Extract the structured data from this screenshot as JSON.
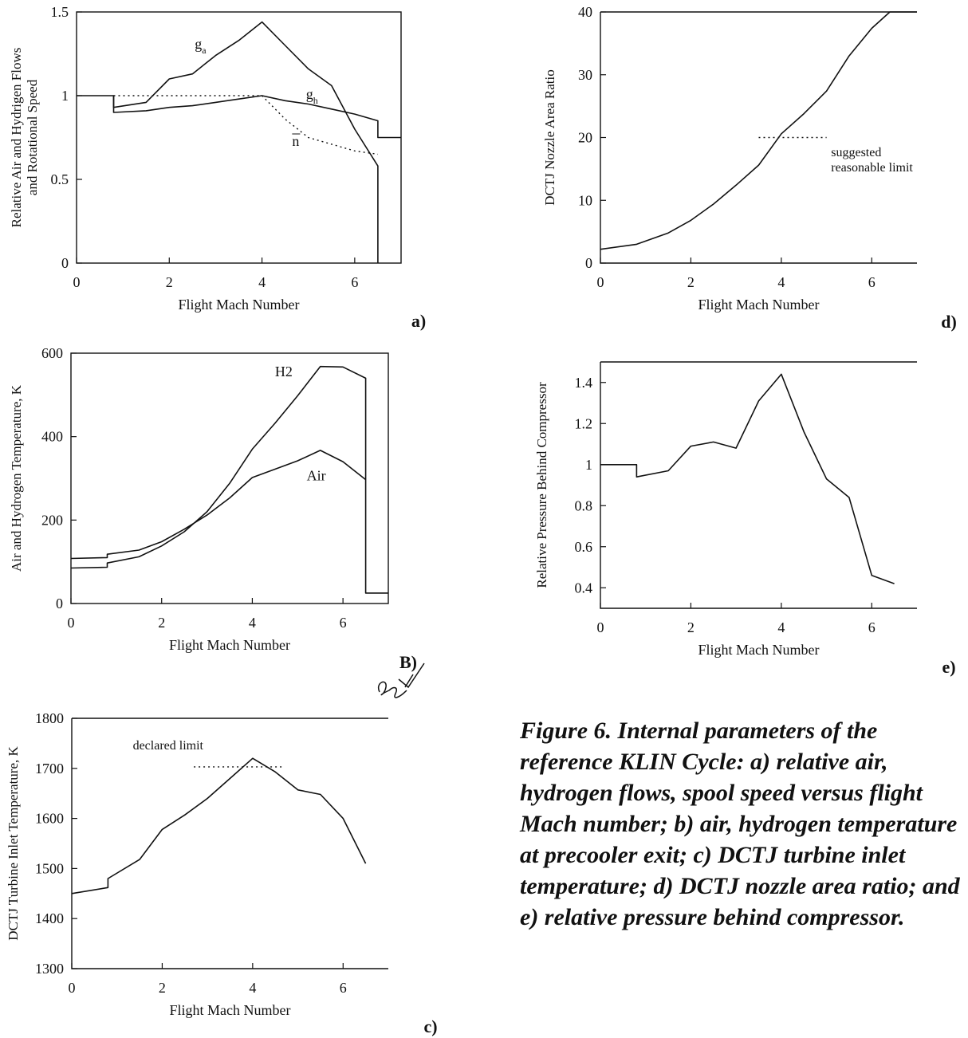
{
  "caption": "Figure 6.  Internal parameters of the reference KLIN Cycle: a) relative air, hydrogen flows, spool speed versus flight Mach number; b) air, hydrogen temperature at precooler exit; c) DCTJ turbine inlet temperature; d) DCTJ nozzle area ratio; and e) relative pressure behind compressor.",
  "chart_data": [
    {
      "id": "a",
      "panel_label": "a)",
      "type": "line",
      "xlabel": "Flight Mach Number",
      "ylabel": [
        "Relative Air and Hydrigen Flows",
        "and Rotational Speed"
      ],
      "xlim": [
        0,
        7
      ],
      "ylim": [
        0,
        1.5
      ],
      "xticks": [
        0,
        2,
        4,
        6
      ],
      "xtick_labels": [
        "0",
        "2",
        "4",
        "6"
      ],
      "yticks": [
        0,
        0.5,
        1,
        1.5
      ],
      "ytick_labels": [
        "0",
        "0.5",
        "1",
        "1.5"
      ],
      "series": [
        {
          "name": "g_a",
          "style": "solid",
          "x": [
            0,
            0.8,
            0.8,
            1.5,
            2,
            2.5,
            3,
            3.5,
            4,
            4.5,
            5,
            5.5,
            6,
            6.5,
            6.5
          ],
          "y": [
            1.0,
            1.0,
            0.93,
            0.96,
            1.1,
            1.13,
            1.24,
            1.33,
            1.44,
            1.3,
            1.16,
            1.06,
            0.8,
            0.58,
            0.0
          ]
        },
        {
          "name": "g_h",
          "style": "solid",
          "x": [
            0.8,
            0.8,
            1.5,
            2,
            2.5,
            3,
            3.5,
            4,
            4.5,
            5,
            5.5,
            6,
            6.5,
            6.5,
            7
          ],
          "y": [
            1.0,
            0.9,
            0.91,
            0.93,
            0.94,
            0.96,
            0.98,
            1.0,
            0.97,
            0.95,
            0.92,
            0.89,
            0.85,
            0.75,
            0.75
          ]
        },
        {
          "name": "n",
          "style": "dotted",
          "x": [
            0.8,
            2,
            3,
            4,
            4.5,
            5,
            5.5,
            6,
            6.5
          ],
          "y": [
            1.0,
            1.0,
            1.0,
            1.0,
            0.86,
            0.75,
            0.71,
            0.67,
            0.65
          ]
        }
      ],
      "annotations": [
        {
          "main": "g",
          "sub": "a",
          "x": 2.55,
          "y": 1.28
        },
        {
          "main": "g",
          "sub": "h",
          "x": 4.95,
          "y": 0.98
        },
        {
          "main": "n",
          "sub": "",
          "x": 4.65,
          "y": 0.7,
          "overline": true
        }
      ]
    },
    {
      "id": "b",
      "panel_label": "B)",
      "type": "line",
      "xlabel": "Flight Mach Number",
      "ylabel": [
        "Air and Hydrogen Temperature, K"
      ],
      "xlim": [
        0,
        7
      ],
      "ylim": [
        0,
        600
      ],
      "xticks": [
        0,
        2,
        4,
        6
      ],
      "xtick_labels": [
        "0",
        "2",
        "4",
        "6"
      ],
      "yticks": [
        0,
        200,
        400,
        600
      ],
      "ytick_labels": [
        "0",
        "200",
        "400",
        "600"
      ],
      "series": [
        {
          "name": "H2",
          "style": "solid",
          "x": [
            0,
            0.8,
            0.8,
            1.5,
            2,
            2.5,
            3,
            3.5,
            4,
            4.5,
            5,
            5.5,
            6,
            6.5,
            6.5,
            7
          ],
          "y": [
            85,
            87,
            97,
            112,
            138,
            172,
            220,
            288,
            370,
            432,
            498,
            568,
            567,
            540,
            25,
            25
          ]
        },
        {
          "name": "Air",
          "style": "solid",
          "x": [
            0,
            0.8,
            0.8,
            1.5,
            2,
            2.5,
            3,
            3.5,
            4,
            4.5,
            5,
            5.5,
            6,
            6.5
          ],
          "y": [
            108,
            110,
            118,
            128,
            148,
            178,
            212,
            253,
            302,
            322,
            342,
            367,
            340,
            297
          ]
        }
      ],
      "annotations": [
        {
          "main": "H2",
          "x": 4.5,
          "y": 545
        },
        {
          "main": "Air",
          "x": 5.2,
          "y": 295
        }
      ]
    },
    {
      "id": "c",
      "panel_label": "c)",
      "type": "line",
      "xlabel": "Flight Mach Number",
      "ylabel": [
        "DCTJ Turbine Inlet Temperature, K"
      ],
      "xlim": [
        0,
        7
      ],
      "ylim": [
        1300,
        1800
      ],
      "xticks": [
        0,
        2,
        4,
        6
      ],
      "xtick_labels": [
        "0",
        "2",
        "4",
        "6"
      ],
      "yticks": [
        1300,
        1400,
        1500,
        1600,
        1700,
        1800
      ],
      "ytick_labels": [
        "1300",
        "1400",
        "1500",
        "1600",
        "1700",
        "1800"
      ],
      "series": [
        {
          "name": "",
          "style": "solid",
          "x": [
            0,
            0.8,
            0.8,
            1.5,
            2,
            2.5,
            3,
            3.5,
            4,
            4.5,
            5,
            5.5,
            6,
            6.5
          ],
          "y": [
            1450,
            1462,
            1480,
            1518,
            1578,
            1607,
            1640,
            1680,
            1720,
            1693,
            1657,
            1648,
            1600,
            1510
          ]
        },
        {
          "name": "declared limit",
          "style": "dotted",
          "x": [
            2.7,
            4.7
          ],
          "y": [
            1703,
            1703
          ]
        }
      ],
      "annotations": [
        {
          "main": "declared limit",
          "x": 1.35,
          "y": 1738
        }
      ]
    },
    {
      "id": "d",
      "panel_label": "d)",
      "type": "line",
      "xlabel": "Flight Mach Number",
      "ylabel": [
        "DCTJ Nozzle Area Ratio"
      ],
      "xlim": [
        0,
        7
      ],
      "ylim": [
        0,
        40
      ],
      "xticks": [
        0,
        2,
        4,
        6
      ],
      "xtick_labels": [
        "0",
        "2",
        "4",
        "6"
      ],
      "yticks": [
        0,
        10,
        20,
        30,
        40
      ],
      "ytick_labels": [
        "0",
        "10",
        "20",
        "30",
        "40"
      ],
      "series": [
        {
          "name": "",
          "style": "solid",
          "x": [
            0,
            0.8,
            1.5,
            2,
            2.5,
            3,
            3.5,
            4,
            4.5,
            5,
            5.5,
            6,
            6.4,
            7
          ],
          "y": [
            2.2,
            3.0,
            4.8,
            6.8,
            9.4,
            12.4,
            15.6,
            20.6,
            23.8,
            27.4,
            33.0,
            37.4,
            40.0,
            40.0
          ]
        },
        {
          "name": "suggested reasonable limit",
          "style": "dotted",
          "x": [
            3.5,
            5.0
          ],
          "y": [
            20.0,
            20.0
          ]
        }
      ],
      "annotations": [
        {
          "main": "suggested",
          "x": 5.1,
          "y": 17.0
        },
        {
          "main": "reasonable limit",
          "x": 5.1,
          "y": 14.6
        }
      ]
    },
    {
      "id": "e",
      "panel_label": "e)",
      "type": "line",
      "xlabel": "Flight Mach Number",
      "ylabel": [
        "Relative Pressure Behind Compressor"
      ],
      "xlim": [
        0,
        7
      ],
      "ylim": [
        0.3,
        1.5
      ],
      "xticks": [
        0,
        2,
        4,
        6
      ],
      "xtick_labels": [
        "0",
        "2",
        "4",
        "6"
      ],
      "yticks": [
        0.4,
        0.6,
        0.8,
        1.0,
        1.2,
        1.4
      ],
      "ytick_labels": [
        "0.4",
        "0.6",
        "0.8",
        "1",
        "1.2",
        "1.4"
      ],
      "series": [
        {
          "name": "",
          "style": "solid",
          "x": [
            0,
            0.8,
            0.8,
            1.5,
            2,
            2.5,
            3,
            3.5,
            4,
            4.5,
            5,
            5.5,
            6,
            6.5
          ],
          "y": [
            1.0,
            1.0,
            0.94,
            0.97,
            1.09,
            1.11,
            1.08,
            1.31,
            1.44,
            1.16,
            0.93,
            0.84,
            0.46,
            0.42
          ]
        }
      ],
      "annotations": []
    }
  ]
}
